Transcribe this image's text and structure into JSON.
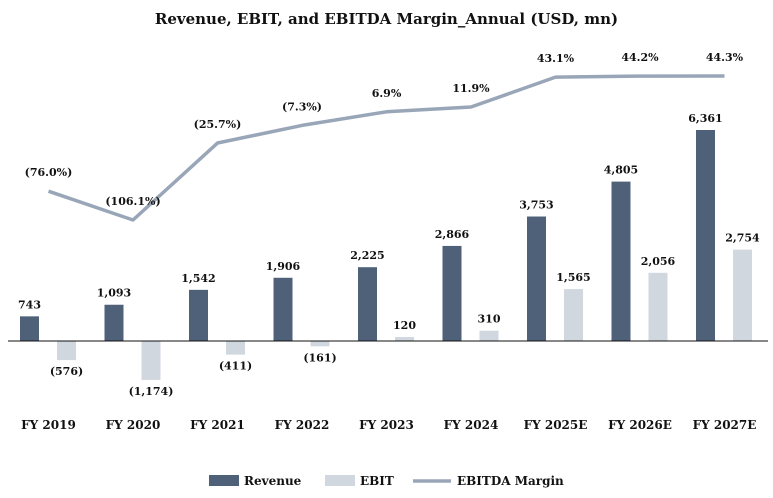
{
  "chart_data": {
    "type": "bar",
    "title": "Revenue, EBIT, and EBITDA Margin_Annual (USD, mn)",
    "categories": [
      "FY 2019",
      "FY 2020",
      "FY 2021",
      "FY 2022",
      "FY 2023",
      "FY 2024",
      "FY 2025E",
      "FY 2026E",
      "FY 2027E"
    ],
    "series": [
      {
        "name": "Revenue",
        "type": "bar",
        "color": "#4f6079",
        "values": [
          743,
          1093,
          1542,
          1906,
          2225,
          2866,
          3753,
          4805,
          6361
        ],
        "labels": [
          "743",
          "1,093",
          "1,542",
          "1,906",
          "2,225",
          "2,866",
          "3,753",
          "4,805",
          "6,361"
        ]
      },
      {
        "name": "EBIT",
        "type": "bar",
        "color": "#d0d7df",
        "values": [
          -576,
          -1174,
          -411,
          -161,
          120,
          310,
          1565,
          2056,
          2754
        ],
        "labels": [
          "(576)",
          "(1,174)",
          "(411)",
          "(161)",
          "120",
          "310",
          "1,565",
          "2,056",
          "2,754"
        ]
      },
      {
        "name": "EBITDA Margin",
        "type": "line",
        "color": "#99a6b8",
        "values": [
          -76.0,
          -106.1,
          -25.7,
          -7.3,
          6.9,
          11.9,
          43.1,
          44.2,
          44.3
        ],
        "labels": [
          "(76.0%)",
          "(106.1%)",
          "(25.7%)",
          "(7.3%)",
          "6.9%",
          "11.9%",
          "43.1%",
          "44.2%",
          "44.3%"
        ]
      }
    ],
    "legend": "bottom"
  }
}
